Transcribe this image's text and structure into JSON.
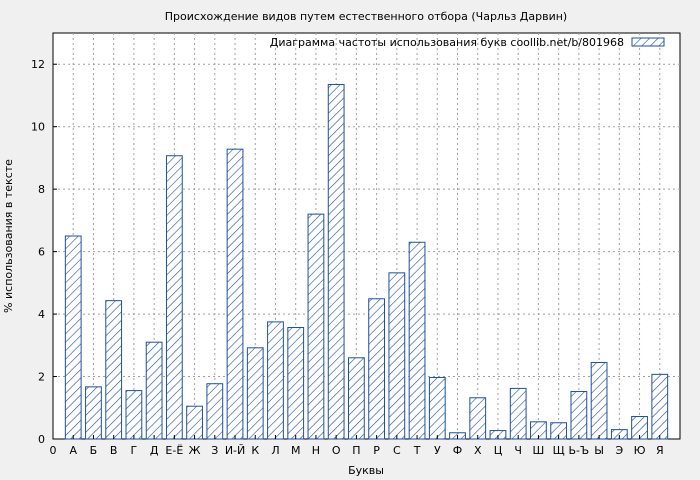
{
  "chart_data": {
    "type": "bar",
    "title": "Происхождение видов путем естественного отбора (Чарльз Дарвин)",
    "xlabel": "Буквы",
    "ylabel": "% использования в тексте",
    "ylim": [
      0,
      13
    ],
    "yticks": [
      0,
      2,
      4,
      6,
      8,
      10,
      12
    ],
    "grid": true,
    "legend_position": "top-right",
    "bar_color": "#1f4fa0",
    "background": "#f0f0f0",
    "x_first_tick": "0",
    "categories": [
      "А",
      "Б",
      "В",
      "Г",
      "Д",
      "Е-Ё",
      "Ж",
      "З",
      "И-Й",
      "К",
      "Л",
      "М",
      "Н",
      "О",
      "П",
      "Р",
      "С",
      "Т",
      "У",
      "Ф",
      "Х",
      "Ц",
      "Ч",
      "Ш",
      "Щ",
      "Ь-Ъ",
      "Ы",
      "Э",
      "Ю",
      "Я"
    ],
    "series": [
      {
        "name": "Диаграмма частоты использования букв coollib.net/b/801968",
        "values": [
          6.5,
          1.67,
          4.43,
          1.55,
          3.1,
          9.07,
          1.05,
          1.77,
          9.28,
          2.92,
          3.75,
          3.57,
          7.2,
          11.35,
          2.6,
          4.49,
          5.32,
          6.3,
          1.97,
          0.2,
          1.32,
          0.27,
          1.62,
          0.55,
          0.52,
          1.52,
          2.45,
          0.3,
          0.72,
          2.07
        ]
      }
    ]
  }
}
